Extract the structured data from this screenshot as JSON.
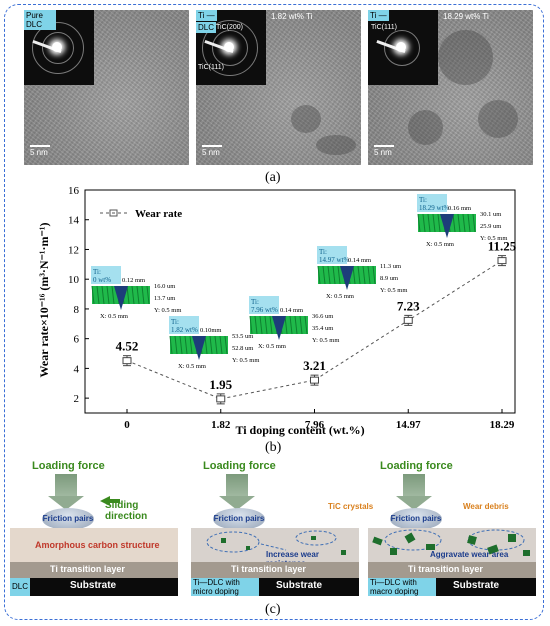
{
  "panel_a": {
    "images": [
      {
        "inset_label": "Pure DLC",
        "scale": "5 nm"
      },
      {
        "inset_label": "Ti —",
        "doping": "1.82 wt% Ti",
        "sub_label": "DLC",
        "ring1": "TiC(200)",
        "ring2": "TiC(111)",
        "scale": "5 nm"
      },
      {
        "inset_label": "Ti —",
        "doping": "18.29 wt% Ti",
        "ring1": "TiC(111)",
        "scale": "5 nm"
      }
    ],
    "caption": "(a)"
  },
  "panel_b": {
    "caption": "(b)",
    "legend": "Wear rate",
    "profiles": [
      {
        "tag": "Ti:\n0 wt%",
        "depth": "0.12 mm",
        "h1": "16.0 um",
        "h2": "13.7 um",
        "x": "X: 0.5 mm",
        "y": "Y: 0.5 mm"
      },
      {
        "tag": "Ti:\n1.82 wt%",
        "depth": "0.10mm",
        "h1": "53.5 um",
        "h2": "52.8 um",
        "x": "X: 0.5 mm",
        "y": "Y: 0.5 mm"
      },
      {
        "tag": "Ti:\n7.96 wt%",
        "depth": "0.14 mm",
        "h1": "36.6 um",
        "h2": "35.4 um",
        "x": "X: 0.5 mm",
        "y": "Y: 0.5 mm"
      },
      {
        "tag": "Ti:\n14.97 wt%",
        "depth": "0.14 mm",
        "h1": "11.3 um",
        "h2": "8.9 um",
        "x": "X: 0.5 mm",
        "y": "Y: 0.5 mm"
      },
      {
        "tag": "Ti:\n18.29 wt%",
        "depth": "0.16 mm",
        "h1": "30.1 um",
        "h2": "25.9 um",
        "x": "X: 0.5 mm",
        "y": "Y: 0.5 mm"
      }
    ]
  },
  "chart_data": {
    "type": "line",
    "title": "",
    "xlabel": "Ti doping content (wt.%)",
    "ylabel": "Wear rate×10⁻¹⁶ (m³·N⁻¹·m⁻¹)",
    "categories": [
      "0",
      "1.82",
      "7.96",
      "14.97",
      "18.29"
    ],
    "series": [
      {
        "name": "Wear rate",
        "values": [
          4.52,
          1.95,
          3.21,
          7.23,
          11.25
        ]
      }
    ],
    "value_labels": [
      "4.52",
      "1.95",
      "3.21",
      "7.23",
      "11.25"
    ],
    "ylim": [
      1,
      16
    ],
    "yticks": [
      "2",
      "4",
      "6",
      "8",
      "10",
      "12",
      "14",
      "16"
    ],
    "legend_position": "top-left",
    "line_color": "#555555"
  },
  "panel_c": {
    "caption": "(c)",
    "loading_force": "Loading force",
    "sliding_direction": "Sliding direction",
    "friction_pairs": "Friction pairs",
    "amorphous": "Amorphous carbon structure",
    "ti_layer": "Ti transition layer",
    "substrate": "Substrate",
    "tag1": "DLC",
    "tag2": "Ti—DLC with micro doping",
    "tag3": "Ti—DLC with macro doping",
    "increase": "Increase wear resistance",
    "tic": "TiC crystals",
    "debris": "Wear debris",
    "aggravate": "Aggravate wear area"
  }
}
